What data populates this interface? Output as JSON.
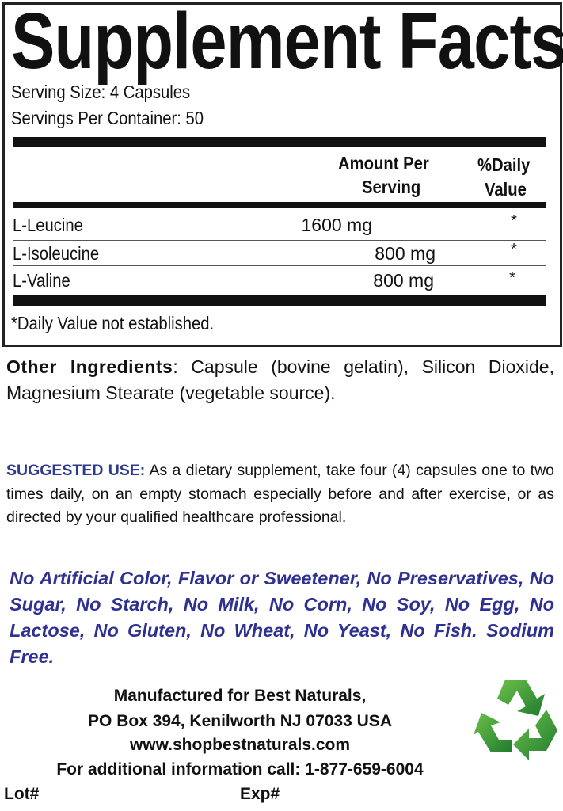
{
  "title": "Supplement Facts",
  "serving_size": "Serving Size: 4 Capsules",
  "servings_per_container": "Servings Per Container: 50",
  "table": {
    "headers": {
      "amount_line1": "Amount Per",
      "amount_line2": "Serving",
      "dv_line1": "%Daily",
      "dv_line2": "Value"
    },
    "rows": [
      {
        "name": "L-Leucine",
        "amount": "1600 mg",
        "dv": "*"
      },
      {
        "name": "L-Isoleucine",
        "amount": "800 mg",
        "dv": "*"
      },
      {
        "name": "L-Valine",
        "amount": "800 mg",
        "dv": "*"
      }
    ],
    "footnote": "*Daily Value not established."
  },
  "other_ingredients": {
    "label": "Other Ingredients",
    "text": ": Capsule (bovine gelatin), Silicon Dioxide, Magnesium Stearate (vegetable source)."
  },
  "suggested_use": {
    "label": "SUGGESTED USE:",
    "text": " As a dietary supplement, take four (4) capsules one to two times daily, on an empty stomach especially before and after exercise, or as directed by your qualified healthcare professional."
  },
  "free_from": "No Artificial Color, Flavor or Sweetener, No Preservatives, No Sugar, No Starch, No Milk, No Corn, No Soy, No Egg, No Lactose, No Gluten, No Wheat, No Yeast, No Fish. Sodium Free.",
  "manufacturer": {
    "line1": "Manufactured for Best Naturals,",
    "line2": "PO Box 394, Kenilworth NJ 07033 USA",
    "website": "www.shopbestnaturals.com",
    "phone_line": "For additional information call: 1-877-659-6004"
  },
  "lot_label": "Lot#",
  "exp_label": "Exp#",
  "colors": {
    "accent_blue": "#2e3192",
    "recycle_green": "#3a9a3a"
  },
  "icons": {
    "recycle": "recycle-icon"
  }
}
